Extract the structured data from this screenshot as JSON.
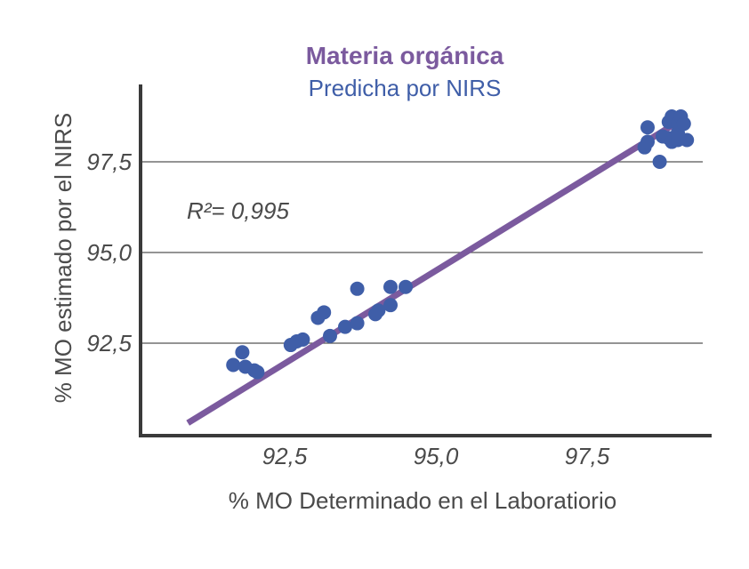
{
  "colors": {
    "title": "#7b5a9e",
    "subtitle": "#3f5ea8",
    "fit_line": "#7b5a9e",
    "points": "#3f5ea8",
    "axis": "#3a3a3a",
    "grid": "#555555",
    "text": "#4a4a4a"
  },
  "chart_data": {
    "type": "scatter",
    "title": "Materia orgánica",
    "subtitle": "Predicha por NIRS",
    "xlabel": "% MO Determinado en el Laboratiorio",
    "ylabel": "% MO estimado por el NIRS",
    "xlim": [
      90.5,
      99.2
    ],
    "ylim": [
      89.8,
      99.2
    ],
    "xticks": [
      92.5,
      95.0,
      97.5
    ],
    "yticks": [
      92.5,
      95.0,
      97.5
    ],
    "xtick_labels": [
      "92,5",
      "95,0",
      "97,5"
    ],
    "ytick_labels": [
      "92,5",
      "95,0",
      "97,5"
    ],
    "grid": "horizontal",
    "annotation": "R²= 0,995",
    "fit_line": {
      "x": [
        90.9,
        99.1
      ],
      "y": [
        90.3,
        98.7
      ]
    },
    "points": [
      {
        "x": 91.65,
        "y": 91.9
      },
      {
        "x": 91.8,
        "y": 92.25
      },
      {
        "x": 91.85,
        "y": 91.85
      },
      {
        "x": 92.0,
        "y": 91.75
      },
      {
        "x": 92.05,
        "y": 91.7
      },
      {
        "x": 92.6,
        "y": 92.45
      },
      {
        "x": 92.7,
        "y": 92.55
      },
      {
        "x": 92.8,
        "y": 92.6
      },
      {
        "x": 93.05,
        "y": 93.2
      },
      {
        "x": 93.15,
        "y": 93.35
      },
      {
        "x": 93.25,
        "y": 92.7
      },
      {
        "x": 93.5,
        "y": 92.95
      },
      {
        "x": 93.7,
        "y": 93.05
      },
      {
        "x": 93.7,
        "y": 94.0
      },
      {
        "x": 94.0,
        "y": 93.3
      },
      {
        "x": 94.05,
        "y": 93.4
      },
      {
        "x": 94.25,
        "y": 93.55
      },
      {
        "x": 94.25,
        "y": 94.05
      },
      {
        "x": 94.5,
        "y": 94.05
      },
      {
        "x": 98.45,
        "y": 97.9
      },
      {
        "x": 98.5,
        "y": 98.05
      },
      {
        "x": 98.5,
        "y": 98.45
      },
      {
        "x": 98.7,
        "y": 97.5
      },
      {
        "x": 98.75,
        "y": 98.2
      },
      {
        "x": 98.85,
        "y": 98.15
      },
      {
        "x": 98.85,
        "y": 98.6
      },
      {
        "x": 98.9,
        "y": 98.75
      },
      {
        "x": 98.9,
        "y": 98.05
      },
      {
        "x": 99.0,
        "y": 98.1
      },
      {
        "x": 99.0,
        "y": 98.3
      },
      {
        "x": 99.0,
        "y": 98.55
      },
      {
        "x": 99.05,
        "y": 98.75
      },
      {
        "x": 99.1,
        "y": 98.55
      },
      {
        "x": 99.15,
        "y": 98.1
      }
    ]
  }
}
